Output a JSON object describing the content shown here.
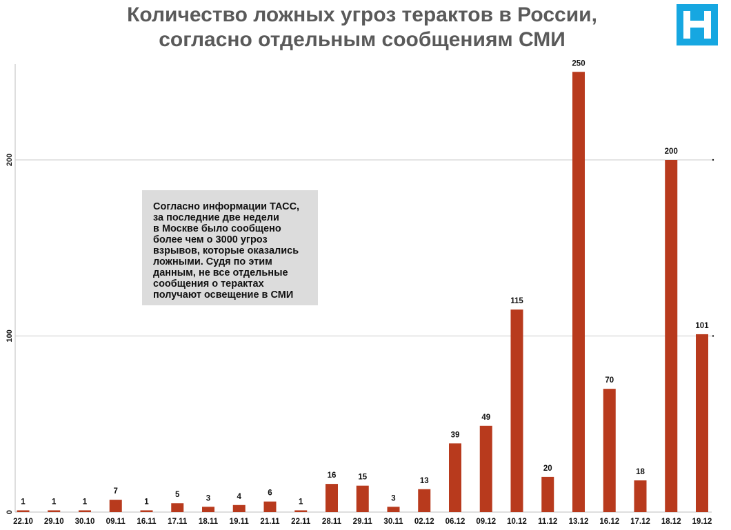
{
  "header": {
    "title_line1": "Количество ложных угроз терактов в России,",
    "title_line2": "согласно отдельным сообщениям СМИ"
  },
  "logo": {
    "icon": "brand-logo-icon",
    "color": "#16a7e1"
  },
  "note": {
    "lines": [
      "Согласно информации ТАСС,",
      "за последние две недели",
      "в Москве было сообщено",
      "более чем о 3000 угроз",
      "взрывов, которые оказались",
      "ложными. Судя по этим",
      "данным, не все отдельные",
      "сообщения о терактах",
      "получают освещение в СМИ"
    ]
  },
  "chart_data": {
    "type": "bar",
    "title": "Количество ложных угроз терактов в России, согласно отдельным сообщениям СМИ",
    "categories": [
      "22.10",
      "29.10",
      "30.10",
      "09.11",
      "16.11",
      "17.11",
      "18.11",
      "19.11",
      "21.11",
      "22.11",
      "28.11",
      "29.11",
      "30.11",
      "02.12",
      "06.12",
      "09.12",
      "10.12",
      "11.12",
      "13.12",
      "16.12",
      "17.12",
      "18.12",
      "19.12"
    ],
    "values": [
      1,
      1,
      1,
      7,
      1,
      5,
      3,
      4,
      6,
      1,
      16,
      15,
      3,
      13,
      39,
      49,
      115,
      20,
      250,
      70,
      18,
      200,
      101
    ],
    "value_labels": [
      "1",
      "1",
      "1",
      "7",
      "1",
      "5",
      "3",
      "4",
      "6",
      "1",
      "16",
      "15",
      "3",
      "13",
      "39",
      "49",
      "115",
      "20",
      "250",
      "70",
      "18",
      "200",
      "101"
    ],
    "y_ticks": [
      "0",
      "100",
      "200"
    ],
    "ylim": [
      0,
      250
    ],
    "xlabel": "",
    "ylabel": "",
    "grid": true,
    "bar_color": "#b83a1d",
    "grid_color": "#c8c8c8"
  }
}
